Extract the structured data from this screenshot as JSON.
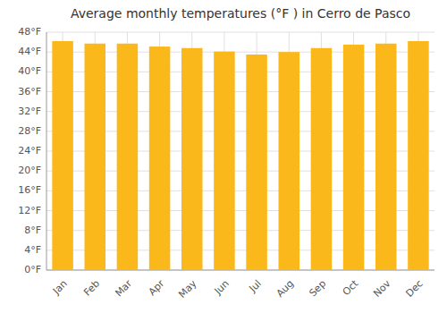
{
  "chart_data": {
    "type": "bar",
    "title": "Average monthly temperatures (°F ) in Cerro de Pasco",
    "categories": [
      "Jan",
      "Feb",
      "Mar",
      "Apr",
      "May",
      "Jun",
      "Jul",
      "Aug",
      "Sep",
      "Oct",
      "Nov",
      "Dec"
    ],
    "values": [
      46.2,
      45.7,
      45.7,
      45.1,
      44.8,
      44.1,
      43.5,
      44.0,
      44.8,
      45.5,
      45.7,
      46.2
    ],
    "color": "#FBB81A",
    "ylim": [
      0,
      48
    ],
    "yticks": [
      {
        "value": 0,
        "label": "0°F"
      },
      {
        "value": 4,
        "label": "4°F"
      },
      {
        "value": 8,
        "label": "8°F"
      },
      {
        "value": 12,
        "label": "12°F"
      },
      {
        "value": 16,
        "label": "16°F"
      },
      {
        "value": 20,
        "label": "20°F"
      },
      {
        "value": 24,
        "label": "24°F"
      },
      {
        "value": 28,
        "label": "28°F"
      },
      {
        "value": 32,
        "label": "32°F"
      },
      {
        "value": 36,
        "label": "36°F"
      },
      {
        "value": 40,
        "label": "40°F"
      },
      {
        "value": 44,
        "label": "44°F"
      },
      {
        "value": 48,
        "label": "48°F"
      }
    ],
    "grid": true
  }
}
